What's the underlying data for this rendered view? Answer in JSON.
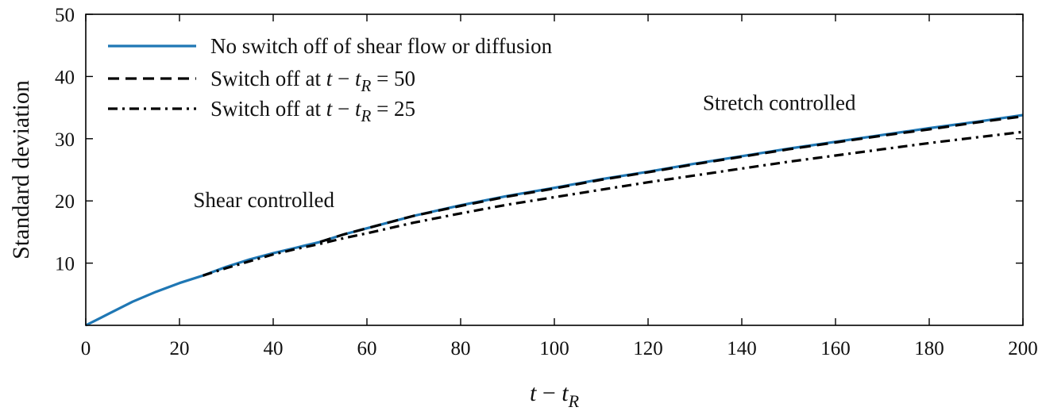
{
  "chart_data": {
    "type": "line",
    "title": "",
    "xlabel": "t − t_R",
    "ylabel": "Standard deviation",
    "xlim": [
      0,
      200
    ],
    "ylim": [
      0,
      50
    ],
    "x_ticks": [
      0,
      20,
      40,
      60,
      80,
      100,
      120,
      140,
      160,
      180,
      200
    ],
    "y_ticks": [
      10,
      20,
      30,
      40,
      50
    ],
    "grid": false,
    "legend_position": "top-left",
    "series": [
      {
        "name": "No switch off of shear flow or diffusion",
        "style": "solid",
        "color": "#1f77b4",
        "x": [
          0,
          5,
          10,
          15,
          20,
          25,
          30,
          35,
          40,
          45,
          50,
          55,
          60,
          70,
          80,
          90,
          100,
          110,
          120,
          130,
          140,
          150,
          160,
          170,
          180,
          190,
          200
        ],
        "y": [
          0,
          1.9,
          3.8,
          5.4,
          6.8,
          8.0,
          9.4,
          10.6,
          11.6,
          12.5,
          13.4,
          14.6,
          15.6,
          17.6,
          19.3,
          20.8,
          22.1,
          23.5,
          24.7,
          26.0,
          27.2,
          28.4,
          29.5,
          30.6,
          31.7,
          32.7,
          33.8
        ]
      },
      {
        "name": "Switch off at t − t_R = 50",
        "style": "dashed",
        "color": "#000000",
        "x": [
          50,
          55,
          60,
          70,
          80,
          90,
          100,
          110,
          120,
          130,
          140,
          150,
          160,
          170,
          180,
          190,
          200
        ],
        "y": [
          13.4,
          14.6,
          15.6,
          17.6,
          19.2,
          20.7,
          22.0,
          23.4,
          24.6,
          25.9,
          27.1,
          28.3,
          29.4,
          30.5,
          31.5,
          32.6,
          33.6
        ]
      },
      {
        "name": "Switch off at t − t_R = 25",
        "style": "dashdot",
        "color": "#000000",
        "x": [
          25,
          30,
          35,
          40,
          45,
          50,
          55,
          60,
          70,
          80,
          90,
          100,
          110,
          120,
          130,
          140,
          150,
          160,
          170,
          180,
          190,
          200
        ],
        "y": [
          8.0,
          9.2,
          10.3,
          11.4,
          12.3,
          13.1,
          14.0,
          14.8,
          16.5,
          18.0,
          19.4,
          20.6,
          21.8,
          23.0,
          24.1,
          25.2,
          26.3,
          27.3,
          28.3,
          29.3,
          30.2,
          31.1
        ]
      }
    ],
    "annotations": [
      {
        "text": "Shear controlled",
        "x": 38,
        "y": 19.0
      },
      {
        "text": "Stretch controlled",
        "x": 148,
        "y": 34.6
      }
    ]
  }
}
